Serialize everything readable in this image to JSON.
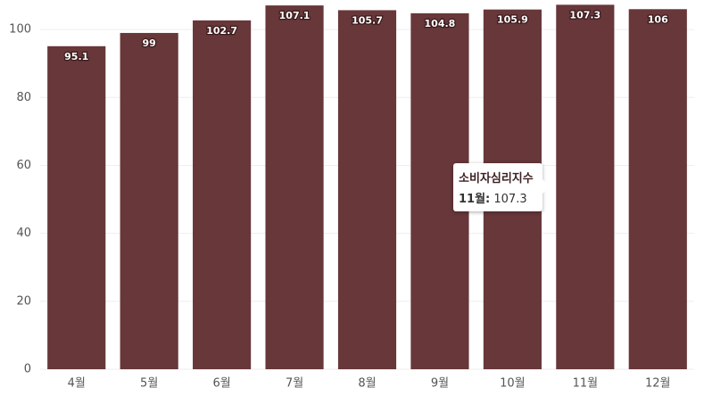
{
  "chart_data": {
    "type": "bar",
    "categories": [
      "4월",
      "5월",
      "6월",
      "7월",
      "8월",
      "9월",
      "10월",
      "11월",
      "12월"
    ],
    "series": [
      {
        "name": "소비자심리지수",
        "color": "#67373a",
        "values": [
          95.1,
          99,
          102.7,
          107.1,
          105.7,
          104.8,
          105.9,
          107.3,
          106
        ]
      }
    ],
    "ylim": [
      0,
      108.7
    ],
    "yticks": [
      0,
      20,
      40,
      60,
      80,
      100
    ],
    "grid": true,
    "tooltip": {
      "title": "소비자심리지수",
      "label": "11월:",
      "value": 107.3
    }
  }
}
